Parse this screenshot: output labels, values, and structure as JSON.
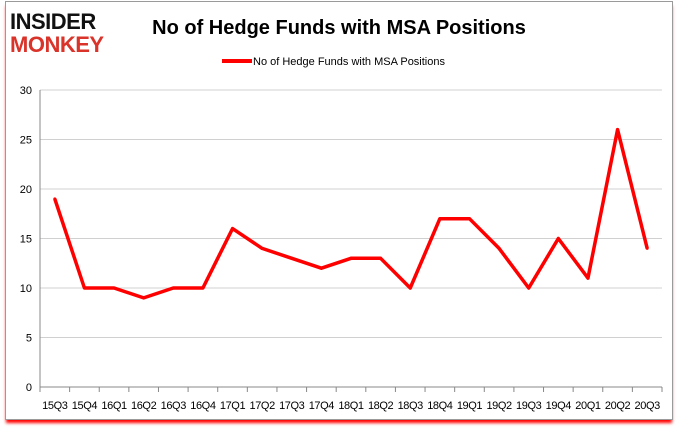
{
  "logo": {
    "line1": "INSIDER",
    "line2": "MONKEY"
  },
  "chart_data": {
    "type": "line",
    "title": "No of Hedge Funds with MSA Positions",
    "categories": [
      "15Q3",
      "15Q4",
      "16Q1",
      "16Q2",
      "16Q3",
      "16Q4",
      "17Q1",
      "17Q2",
      "17Q3",
      "17Q4",
      "18Q1",
      "18Q2",
      "18Q3",
      "18Q4",
      "19Q1",
      "19Q2",
      "19Q3",
      "19Q4",
      "20Q1",
      "20Q2",
      "20Q3"
    ],
    "series": [
      {
        "name": "No of Hedge Funds with MSA Positions",
        "color": "#ff0000",
        "values": [
          19,
          10,
          10,
          9,
          10,
          10,
          16,
          14,
          13,
          12,
          13,
          13,
          10,
          17,
          17,
          14,
          10,
          15,
          11,
          26,
          14
        ]
      }
    ],
    "ylim": [
      0,
      30
    ],
    "yticks": [
      0,
      5,
      10,
      15,
      20,
      25,
      30
    ],
    "grid": true,
    "legend": "top"
  }
}
